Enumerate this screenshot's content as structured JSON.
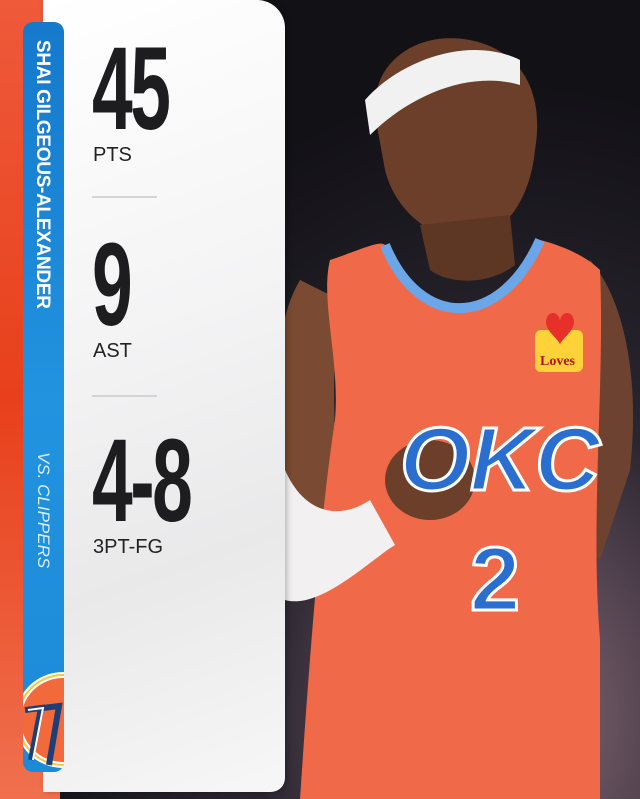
{
  "player": {
    "name": "SHAI GILGEOUS-ALEXANDER",
    "opponent": "VS. CLIPPERS"
  },
  "stats": [
    {
      "value": "45",
      "label": "PTS"
    },
    {
      "value": "9",
      "label": "AST"
    },
    {
      "value": "4-8",
      "label": "3PT-FG"
    }
  ],
  "jersey": {
    "team": "OKC",
    "number": "2",
    "sponsor": "Loves"
  },
  "colors": {
    "accent_orange": "#e8401c",
    "accent_blue": "#1d8ad8",
    "jersey": "#f06a4a",
    "text": "#1d1c1f"
  }
}
